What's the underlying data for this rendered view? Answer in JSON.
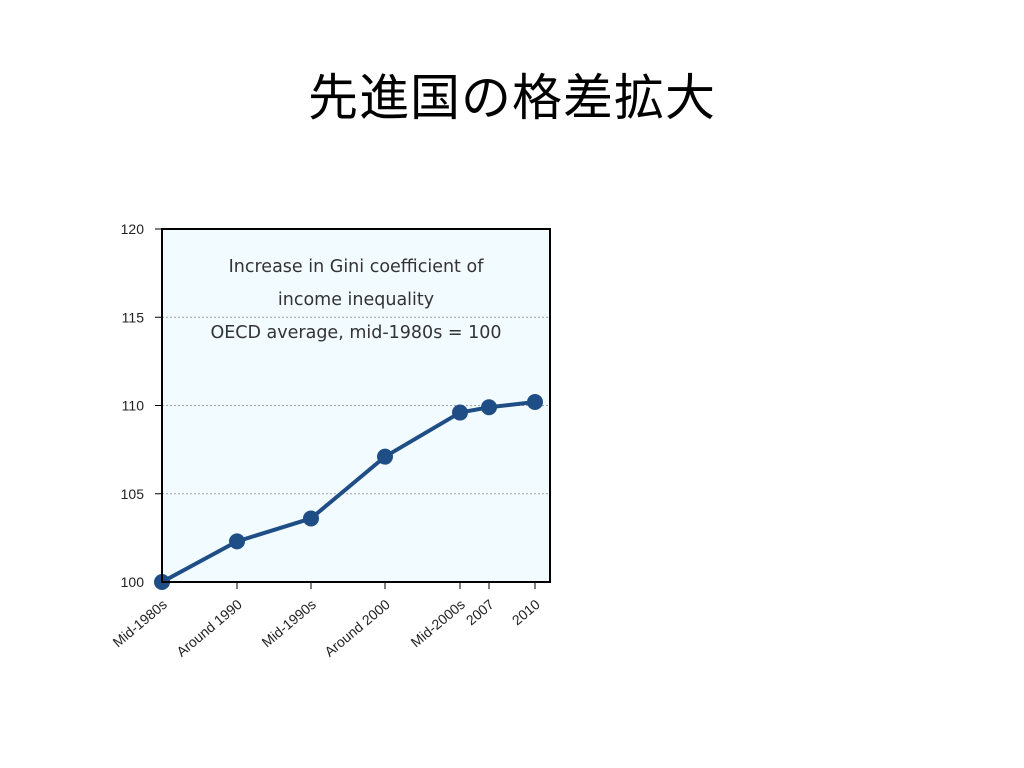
{
  "slide": {
    "title": "先進国の格差拡大"
  },
  "chart_data": {
    "type": "line",
    "title_lines": [
      "Increase in Gini coefficient of",
      "income inequality",
      "OECD average, mid-1980s = 100"
    ],
    "categories": [
      "Mid-1980s",
      "Around 1990",
      "Mid-1990s",
      "Around 2000",
      "Mid-2000s",
      "2007",
      "2010"
    ],
    "values": [
      100,
      102.3,
      103.6,
      107.1,
      109.6,
      109.9,
      110.2
    ],
    "ylim": [
      100,
      120
    ],
    "yticks": [
      "100",
      "105",
      "110",
      "115",
      "120"
    ],
    "grid": true,
    "colors": {
      "line": "#1F4E86",
      "plot_background": "#F2FBFF",
      "gridline": "#A0A0A0",
      "frame": "#000000"
    }
  }
}
